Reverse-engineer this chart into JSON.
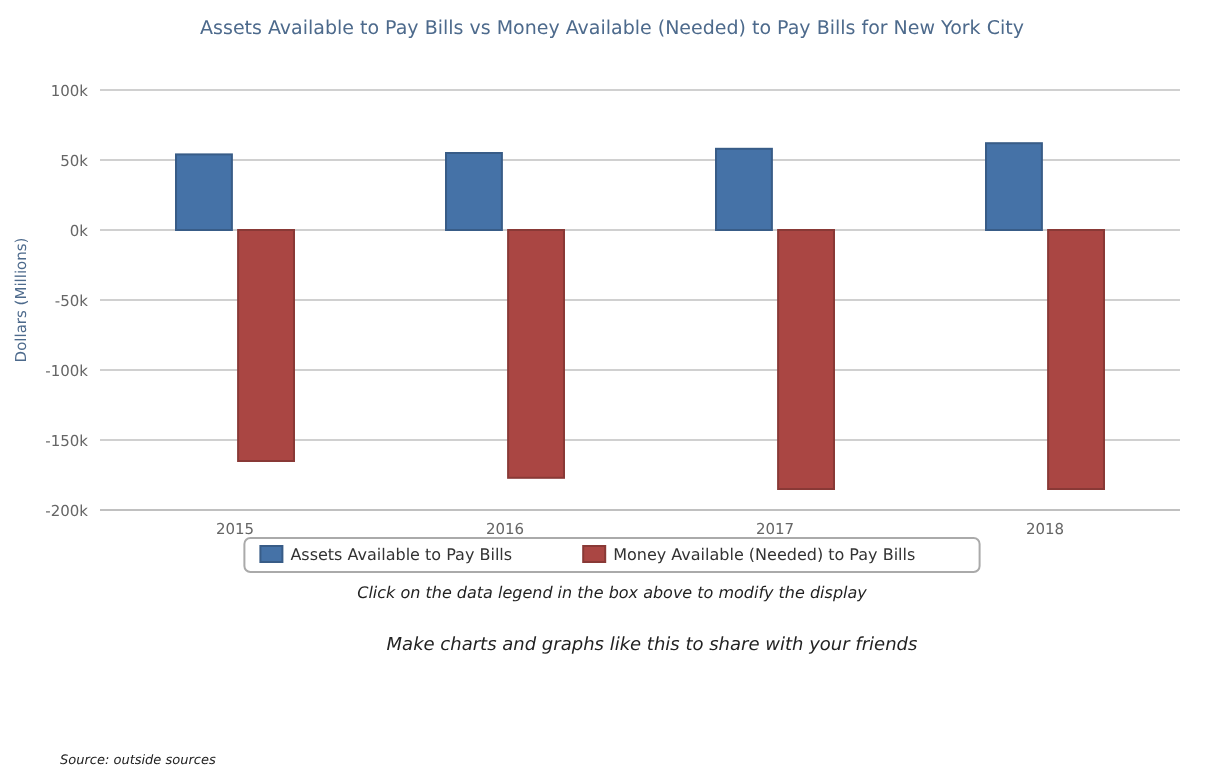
{
  "chart_data": {
    "type": "bar",
    "title": "Assets Available to Pay Bills vs Money Available (Needed) to Pay Bills for New York City",
    "ylabel": "Dollars (Millions)",
    "categories": [
      "2015",
      "2016",
      "2017",
      "2018"
    ],
    "series": [
      {
        "name": "Assets Available to Pay Bills",
        "color": "#4572a7",
        "values": [
          54000,
          55000,
          58000,
          62000
        ]
      },
      {
        "name": "Money Available (Needed) to Pay Bills",
        "color": "#aa4643",
        "values": [
          -165000,
          -177000,
          -185000,
          -185000
        ]
      }
    ],
    "ylim": [
      -200000,
      100000
    ],
    "yticks": [
      {
        "value": -200000,
        "label": "-200k"
      },
      {
        "value": -150000,
        "label": "-150k"
      },
      {
        "value": -100000,
        "label": "-100k"
      },
      {
        "value": -50000,
        "label": "-50k"
      },
      {
        "value": 0,
        "label": "0k"
      },
      {
        "value": 50000,
        "label": "50k"
      },
      {
        "value": 100000,
        "label": "100k"
      }
    ],
    "grid": "y",
    "legend": "bottom",
    "annotations": [
      "Click on the data legend in the box above to modify the display",
      "Make charts and graphs like this to share with your friends",
      "Source: outside sources"
    ]
  }
}
